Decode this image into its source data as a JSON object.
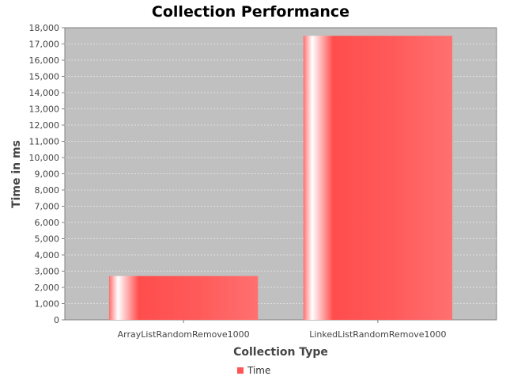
{
  "chart_data": {
    "type": "bar",
    "title": "Collection Performance",
    "xlabel": "Collection Type",
    "ylabel": "Time in ms",
    "categories": [
      "ArrayListRandomRemove1000",
      "LinkedListRandomRemove1000"
    ],
    "series": [
      {
        "name": "Time",
        "values": [
          2700,
          17500
        ],
        "color": "#ff5555"
      }
    ],
    "ylim": [
      0,
      18000
    ],
    "ytick_step": 1000,
    "ytick_labels": [
      "0",
      "1,000",
      "2,000",
      "3,000",
      "4,000",
      "5,000",
      "6,000",
      "7,000",
      "8,000",
      "9,000",
      "10,000",
      "11,000",
      "12,000",
      "13,000",
      "14,000",
      "15,000",
      "16,000",
      "17,000",
      "18,000"
    ],
    "grid": true,
    "legend": "bottom-center",
    "plot_background": "#c0c0c0"
  }
}
